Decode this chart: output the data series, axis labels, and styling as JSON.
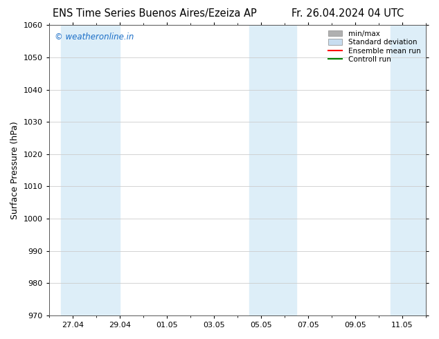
{
  "title_left": "ENS Time Series Buenos Aires/Ezeiza AP",
  "title_right": "Fr. 26.04.2024 04 UTC",
  "ylabel": "Surface Pressure (hPa)",
  "ylim": [
    970,
    1060
  ],
  "yticks": [
    970,
    980,
    990,
    1000,
    1010,
    1020,
    1030,
    1040,
    1050,
    1060
  ],
  "xlim": [
    0,
    16
  ],
  "xtick_labels": [
    "27.04",
    "29.04",
    "01.05",
    "03.05",
    "05.05",
    "07.05",
    "09.05",
    "11.05"
  ],
  "xtick_positions": [
    1,
    3,
    5,
    7,
    9,
    11,
    13,
    15
  ],
  "shaded_bands": [
    {
      "x_start": 0.5,
      "x_end": 3.0,
      "color": "#ddeef8"
    },
    {
      "x_start": 8.5,
      "x_end": 10.5,
      "color": "#ddeef8"
    },
    {
      "x_start": 14.5,
      "x_end": 16.0,
      "color": "#ddeef8"
    }
  ],
  "watermark_text": "© weatheronline.in",
  "watermark_color": "#1a6ec7",
  "bg_color": "#ffffff",
  "plot_bg_color": "#ffffff",
  "legend_items": [
    {
      "label": "min/max",
      "patch_color": "#b0b0b0",
      "type": "patch"
    },
    {
      "label": "Standard deviation",
      "patch_color": "#c8ddf0",
      "type": "patch"
    },
    {
      "label": "Ensemble mean run",
      "color": "#ff0000",
      "lw": 1.5,
      "type": "line"
    },
    {
      "label": "Controll run",
      "color": "#008000",
      "lw": 1.5,
      "type": "line"
    }
  ],
  "grid_color": "#cccccc",
  "spine_color": "#555555",
  "title_fontsize": 10.5,
  "ylabel_fontsize": 9,
  "tick_fontsize": 8,
  "legend_fontsize": 7.5,
  "watermark_fontsize": 8.5
}
